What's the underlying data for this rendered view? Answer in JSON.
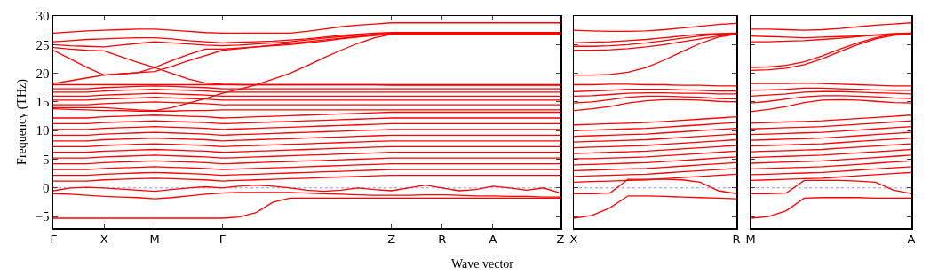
{
  "chart_data": [
    {
      "type": "line",
      "ylabel": "Frequency (THz)",
      "xlabel": "Wave vector",
      "line_style": "solid",
      "grid": false,
      "categories": [
        "Γ",
        null,
        null,
        "X",
        null,
        null,
        "M",
        null,
        null,
        null,
        "Γ",
        null,
        null,
        null,
        null,
        null,
        null,
        null,
        null,
        null,
        "Z",
        null,
        null,
        "R",
        null,
        null,
        "A",
        null,
        null,
        null,
        "Z"
      ],
      "ylim": [
        -7,
        30
      ],
      "yticks": [
        {
          "value": -5,
          "label": "−5"
        },
        0,
        5,
        10,
        15,
        20,
        25,
        30
      ],
      "ref_lines": [
        {
          "axis": "y",
          "value": 0,
          "color": "#7777ee",
          "line_style": "dotted"
        }
      ],
      "series": [
        {
          "color": "#ff0000",
          "values": [
            -5.3,
            -5.3,
            -5.3,
            -5.3,
            -5.3,
            -5.3,
            -5.3,
            -5.3,
            -5.3,
            -5.3,
            -5.3,
            -5.1,
            -4.3,
            -2.5,
            -1.8,
            -1.8,
            -1.8,
            -1.8,
            -1.8,
            -1.8,
            -1.8,
            -1.8,
            -1.8,
            -1.8,
            -1.8,
            -1.8,
            -1.8,
            -1.8,
            -1.8,
            -1.8,
            -1.8
          ]
        },
        {
          "color": "#ff0000",
          "values": [
            -1,
            -1.1,
            -1.3,
            -1.5,
            -1.6,
            -1.7,
            -1.9,
            -1.7,
            -1.4,
            -1.1,
            -0.9,
            -0.8,
            -0.8,
            -0.8,
            -0.8,
            -0.9,
            -1,
            -1.1,
            -1.2,
            -1.3,
            -1.3,
            -1.3,
            -1.2,
            -1.2,
            -1.3,
            -1.4,
            -1.4,
            -1.5,
            -1.5,
            -1.6,
            -1.6
          ]
        },
        {
          "color": "#ff0000",
          "values": [
            -0.5,
            0,
            0.1,
            0,
            -0.2,
            -0.4,
            -0.6,
            -0.3,
            0,
            0.2,
            0,
            0.3,
            0.5,
            0.3,
            0,
            -0.4,
            -0.6,
            -0.4,
            0,
            -0.3,
            -0.5,
            0,
            0.5,
            0,
            -0.5,
            -0.3,
            0.3,
            0,
            -0.4,
            0,
            -0.9
          ]
        },
        {
          "color": "#ff0000",
          "values": [
            1.2,
            1.2,
            1.2,
            1.4,
            1.5,
            1.6,
            1.7,
            1.6,
            1.5,
            1.4,
            1.2,
            1.3,
            1.4,
            1.5,
            1.6,
            1.7,
            1.8,
            1.9,
            2,
            2.1,
            2.2,
            2.2,
            2.2,
            2.2,
            2.2,
            2.2,
            2.2,
            2.2,
            2.2,
            2.2,
            2.2
          ]
        },
        {
          "color": "#ff0000",
          "values": [
            2.2,
            2.2,
            2.2,
            2.4,
            2.5,
            2.6,
            2.7,
            2.6,
            2.5,
            2.4,
            2.2,
            2.3,
            2.4,
            2.5,
            2.6,
            2.7,
            2.8,
            2.9,
            3,
            3.1,
            3.2,
            3.2,
            3.2,
            3.2,
            3.2,
            3.2,
            3.2,
            3.2,
            3.2,
            3.2,
            3.2
          ]
        },
        {
          "color": "#ff0000",
          "values": [
            3.2,
            3.2,
            3.2,
            3.4,
            3.5,
            3.6,
            3.7,
            3.6,
            3.5,
            3.4,
            3.2,
            3.3,
            3.4,
            3.5,
            3.6,
            3.7,
            3.8,
            3.9,
            4,
            4.1,
            4.2,
            4.2,
            4.2,
            4.2,
            4.2,
            4.2,
            4.2,
            4.2,
            4.2,
            4.2,
            4.2
          ]
        },
        {
          "color": "#ff0000",
          "values": [
            4.2,
            4.2,
            4.2,
            4.4,
            4.5,
            4.6,
            4.7,
            4.6,
            4.5,
            4.4,
            4.2,
            4.3,
            4.4,
            4.5,
            4.6,
            4.7,
            4.8,
            4.9,
            5,
            5.1,
            5.2,
            5.2,
            5.2,
            5.2,
            5.2,
            5.2,
            5.2,
            5.2,
            5.2,
            5.2,
            5.2
          ]
        },
        {
          "color": "#ff0000",
          "values": [
            5.2,
            5.2,
            5.2,
            5.4,
            5.5,
            5.6,
            5.7,
            5.6,
            5.5,
            5.4,
            5.2,
            5.3,
            5.4,
            5.5,
            5.6,
            5.7,
            5.8,
            5.9,
            6,
            6.1,
            6.2,
            6.2,
            6.2,
            6.2,
            6.2,
            6.2,
            6.2,
            6.2,
            6.2,
            6.2,
            6.2
          ]
        },
        {
          "color": "#ff0000",
          "values": [
            6.2,
            6.2,
            6.2,
            6.4,
            6.5,
            6.6,
            6.7,
            6.6,
            6.5,
            6.4,
            6.2,
            6.3,
            6.4,
            6.5,
            6.6,
            6.7,
            6.8,
            6.9,
            7,
            7.1,
            7.2,
            7.2,
            7.2,
            7.2,
            7.2,
            7.2,
            7.2,
            7.2,
            7.2,
            7.2,
            7.2
          ]
        },
        {
          "color": "#ff0000",
          "values": [
            7.2,
            7.2,
            7.2,
            7.4,
            7.5,
            7.6,
            7.7,
            7.6,
            7.5,
            7.4,
            7.2,
            7.3,
            7.4,
            7.5,
            7.6,
            7.7,
            7.8,
            7.9,
            8,
            8.1,
            8.2,
            8.2,
            8.2,
            8.2,
            8.2,
            8.2,
            8.2,
            8.2,
            8.2,
            8.2,
            8.2
          ]
        },
        {
          "color": "#ff0000",
          "values": [
            8.2,
            8.2,
            8.2,
            8.4,
            8.5,
            8.6,
            8.7,
            8.6,
            8.5,
            8.4,
            8.2,
            8.3,
            8.4,
            8.5,
            8.6,
            8.7,
            8.8,
            8.9,
            9,
            9.1,
            9.2,
            9.2,
            9.2,
            9.2,
            9.2,
            9.2,
            9.2,
            9.2,
            9.2,
            9.2,
            9.2
          ]
        },
        {
          "color": "#ff0000",
          "values": [
            9.2,
            9.2,
            9.2,
            9.4,
            9.5,
            9.6,
            9.7,
            9.6,
            9.5,
            9.4,
            9.2,
            9.3,
            9.4,
            9.5,
            9.6,
            9.7,
            9.8,
            9.9,
            10,
            10.1,
            10.2,
            10.2,
            10.2,
            10.2,
            10.2,
            10.2,
            10.2,
            10.2,
            10.2,
            10.2,
            10.2
          ]
        },
        {
          "color": "#ff0000",
          "values": [
            10.2,
            10.2,
            10.2,
            10.4,
            10.5,
            10.6,
            10.7,
            10.6,
            10.5,
            10.4,
            10.2,
            10.3,
            10.4,
            10.5,
            10.6,
            10.7,
            10.8,
            10.9,
            11,
            11.1,
            11.2,
            11.2,
            11.2,
            11.2,
            11.2,
            11.2,
            11.2,
            11.2,
            11.2,
            11.2,
            11.2
          ]
        },
        {
          "color": "#ff0000",
          "values": [
            11.2,
            11.2,
            11.2,
            11.4,
            11.5,
            11.6,
            11.7,
            11.6,
            11.5,
            11.4,
            11.2,
            11.3,
            11.4,
            11.5,
            11.6,
            11.7,
            11.8,
            11.9,
            12,
            12.1,
            12.2,
            12.2,
            12.2,
            12.2,
            12.2,
            12.2,
            12.2,
            12.2,
            12.2,
            12.2,
            12.2
          ]
        },
        {
          "color": "#ff0000",
          "values": [
            12.2,
            12.2,
            12.2,
            12.4,
            12.5,
            12.6,
            12.7,
            12.6,
            12.5,
            12.4,
            12.2,
            12.3,
            12.4,
            12.5,
            12.6,
            12.7,
            12.8,
            12.9,
            13,
            13.1,
            13.2,
            13.2,
            13.2,
            13.2,
            13.2,
            13.2,
            13.2,
            13.2,
            13.2,
            13.2,
            13.2
          ]
        },
        {
          "color": "#ff0000",
          "values": [
            13.8,
            13.7,
            13.6,
            13.5,
            13.5,
            13.4,
            13.4,
            13.4,
            13.5,
            13.5,
            13.6,
            13.6,
            13.6,
            13.6,
            13.6,
            13.6,
            13.6,
            13.6,
            13.6,
            13.6,
            13.6,
            13.6,
            13.6,
            13.6,
            13.6,
            13.6,
            13.6,
            13.6,
            13.6,
            13.6,
            13.6
          ]
        },
        {
          "color": "#ff0000",
          "values": [
            14.5,
            14.5,
            14.5,
            14.7,
            14.8,
            14.9,
            15,
            14.9,
            14.8,
            14.7,
            14.5,
            14.5,
            14.5,
            14.5,
            14.5,
            14.5,
            14.5,
            14.5,
            14.5,
            14.5,
            14.5,
            14.5,
            14.5,
            14.5,
            14.5,
            14.5,
            14.5,
            14.5,
            14.5,
            14.5,
            14.5
          ]
        },
        {
          "color": "#ff0000",
          "values": [
            15.3,
            15.3,
            15.3,
            15.5,
            15.6,
            15.7,
            15.8,
            15.7,
            15.6,
            15.5,
            15.3,
            15.3,
            15.3,
            15.3,
            15.3,
            15.3,
            15.3,
            15.3,
            15.3,
            15.3,
            15.3,
            15.3,
            15.3,
            15.3,
            15.3,
            15.3,
            15.3,
            15.3,
            15.3,
            15.3,
            15.3
          ]
        },
        {
          "color": "#ff0000",
          "values": [
            16,
            16,
            16,
            16.2,
            16.3,
            16.4,
            16.5,
            16.4,
            16.3,
            16.2,
            16,
            16,
            16,
            16,
            16,
            16,
            16,
            16,
            16,
            16,
            16,
            16,
            16,
            16,
            16,
            16,
            16,
            16,
            16,
            16,
            16
          ]
        },
        {
          "color": "#ff0000",
          "values": [
            16.7,
            16.7,
            16.7,
            16.9,
            17,
            17.1,
            17.2,
            17.1,
            17,
            16.9,
            16.7,
            16.7,
            16.7,
            16.7,
            16.7,
            16.7,
            16.7,
            16.7,
            16.7,
            16.7,
            16.7,
            16.7,
            16.7,
            16.7,
            16.7,
            16.7,
            16.7,
            16.7,
            16.7,
            16.7,
            16.7
          ]
        },
        {
          "color": "#ff0000",
          "values": [
            17.3,
            17.3,
            17.3,
            17.5,
            17.6,
            17.7,
            17.8,
            17.7,
            17.6,
            17.5,
            17.3,
            17.3,
            17.3,
            17.3,
            17.3,
            17.3,
            17.3,
            17.3,
            17.3,
            17.3,
            17.3,
            17.3,
            17.3,
            17.3,
            17.3,
            17.3,
            17.3,
            17.3,
            17.3,
            17.3,
            17.3
          ]
        },
        {
          "color": "#ff0000",
          "values": [
            18,
            18,
            18,
            18,
            18,
            18,
            18,
            18,
            18,
            18,
            18,
            18,
            18,
            18,
            18,
            18,
            18,
            18,
            18,
            18,
            17.9,
            17.9,
            17.9,
            17.9,
            17.9,
            17.9,
            17.9,
            17.9,
            17.9,
            17.9,
            17.9
          ]
        },
        {
          "color": "#ff0000",
          "values": [
            14,
            14,
            14,
            14,
            13.8,
            13.6,
            13.5,
            14,
            14.8,
            15.6,
            16.5,
            17.2,
            18,
            19,
            20,
            21.3,
            22.7,
            24,
            25.2,
            26.2,
            26.8,
            26.8,
            26.8,
            26.8,
            26.8,
            26.8,
            26.8,
            26.8,
            26.8,
            26.8,
            26.8
          ]
        },
        {
          "color": "#ff0000",
          "values": [
            18.2,
            18.7,
            19.2,
            19.7,
            19.9,
            20.1,
            20.3,
            21.2,
            22.2,
            23.1,
            24,
            24.3,
            24.6,
            24.9,
            25.2,
            25.5,
            25.8,
            26.1,
            26.4,
            26.6,
            26.8,
            26.8,
            26.8,
            26.8,
            26.8,
            26.8,
            26.8,
            26.8,
            26.8,
            26.8,
            26.8
          ]
        },
        {
          "color": "#ff0000",
          "values": [
            24,
            22.5,
            21,
            19.7,
            19.9,
            20.1,
            21,
            20,
            19,
            18.3,
            18.1,
            18,
            18,
            18,
            18,
            18,
            18,
            18,
            18,
            18,
            18,
            18,
            18,
            18,
            18,
            18,
            18,
            18,
            18,
            18,
            18
          ]
        },
        {
          "color": "#ff0000",
          "values": [
            24.5,
            24.2,
            24,
            23.9,
            22.9,
            21.9,
            21,
            22.2,
            23.3,
            24.2,
            24.2,
            24.4,
            24.6,
            24.8,
            25,
            25.3,
            25.6,
            26,
            26.3,
            26.6,
            26.9,
            26.9,
            26.9,
            26.9,
            26.9,
            26.9,
            26.9,
            26.9,
            26.9,
            26.9,
            26.9
          ]
        },
        {
          "color": "#ff0000",
          "values": [
            25,
            24.8,
            24.7,
            24.6,
            24.9,
            25.2,
            25.5,
            25.3,
            25.1,
            24.9,
            24.8,
            24.9,
            25.1,
            25.3,
            25.5,
            25.8,
            26.1,
            26.4,
            26.6,
            26.8,
            27,
            27,
            27,
            27,
            27,
            27,
            27,
            27,
            27,
            27,
            27
          ]
        },
        {
          "color": "#ff0000",
          "values": [
            25.5,
            25.7,
            25.9,
            26,
            26.1,
            26.2,
            26.2,
            26,
            25.7,
            25.5,
            25.3,
            25.4,
            25.5,
            25.6,
            25.8,
            26,
            26.3,
            26.6,
            26.8,
            27,
            27.1,
            27.1,
            27.1,
            27.1,
            27.1,
            27.1,
            27.1,
            27.1,
            27.1,
            27.1,
            27.1
          ]
        },
        {
          "color": "#ff0000",
          "values": [
            27,
            27.2,
            27.4,
            27.5,
            27.6,
            27.7,
            27.7,
            27.5,
            27.3,
            27.1,
            27,
            27,
            27,
            27,
            27,
            27.3,
            27.7,
            28.1,
            28.4,
            28.6,
            28.8,
            28.8,
            28.8,
            28.8,
            28.8,
            28.8,
            28.8,
            28.8,
            28.8,
            28.8,
            28.8
          ]
        }
      ]
    },
    {
      "type": "line",
      "line_style": "solid",
      "grid": false,
      "tick_labels": "x",
      "categories": [
        "X",
        null,
        null,
        null,
        null,
        null,
        null,
        null,
        null,
        "R"
      ],
      "ylim": [
        -7,
        30
      ],
      "yticks": [
        -5,
        0,
        5,
        10,
        15,
        20,
        25,
        30
      ],
      "ref_lines": [
        {
          "axis": "y",
          "value": 0,
          "color": "#7777ee",
          "line_style": "dotted"
        }
      ],
      "series": [
        {
          "color": "#ff0000",
          "values": [
            -5.3,
            -4.8,
            -3.5,
            -1.4,
            -1.4,
            -1.5,
            -1.6,
            -1.7,
            -1.8,
            -1.9
          ]
        },
        {
          "color": "#ff0000",
          "values": [
            -1,
            -1,
            -0.9,
            1.5,
            1.5,
            1.5,
            1.4,
            1,
            -0.5,
            -1
          ]
        },
        {
          "color": "#ff0000",
          "values": [
            1,
            1.1,
            1.2,
            1.3,
            1.4,
            1.6,
            1.8,
            2,
            2.2,
            2.4
          ]
        },
        {
          "color": "#ff0000",
          "values": [
            2,
            2.1,
            2.2,
            2.3,
            2.4,
            2.6,
            2.8,
            3,
            3.2,
            3.4
          ]
        },
        {
          "color": "#ff0000",
          "values": [
            3,
            3.1,
            3.2,
            3.3,
            3.4,
            3.6,
            3.8,
            4,
            4.2,
            4.4
          ]
        },
        {
          "color": "#ff0000",
          "values": [
            4,
            4.1,
            4.2,
            4.3,
            4.4,
            4.6,
            4.8,
            5,
            5.2,
            5.4
          ]
        },
        {
          "color": "#ff0000",
          "values": [
            5.1,
            5.1,
            5.2,
            5.3,
            5.4,
            5.6,
            5.8,
            6,
            6.2,
            6.4
          ]
        },
        {
          "color": "#ff0000",
          "values": [
            6,
            6.1,
            6.2,
            6.3,
            6.4,
            6.6,
            6.8,
            7,
            7.2,
            7.4
          ]
        },
        {
          "color": "#ff0000",
          "values": [
            7,
            7.1,
            7.2,
            7.3,
            7.4,
            7.6,
            7.8,
            8,
            8.2,
            8.4
          ]
        },
        {
          "color": "#ff0000",
          "values": [
            8,
            8.1,
            8.2,
            8.3,
            8.4,
            8.6,
            8.8,
            9,
            9.2,
            9.4
          ]
        },
        {
          "color": "#ff0000",
          "values": [
            9,
            9.1,
            9.2,
            9.3,
            9.4,
            9.6,
            9.8,
            10,
            10.2,
            10.4
          ]
        },
        {
          "color": "#ff0000",
          "values": [
            10,
            10.1,
            10.2,
            10.3,
            10.4,
            10.6,
            10.8,
            11,
            11.2,
            11.4
          ]
        },
        {
          "color": "#ff0000",
          "values": [
            11,
            11.1,
            11.2,
            11.3,
            11.4,
            11.6,
            11.8,
            12,
            12.2,
            12.4
          ]
        },
        {
          "color": "#ff0000",
          "values": [
            13.5,
            13.8,
            14.2,
            14.8,
            15.2,
            15.4,
            15.4,
            15.3,
            15.1,
            15
          ]
        },
        {
          "color": "#ff0000",
          "values": [
            14.8,
            15,
            15.4,
            15.8,
            16,
            16,
            15.9,
            15.8,
            15.6,
            15.5
          ]
        },
        {
          "color": "#ff0000",
          "values": [
            16,
            16.1,
            16.3,
            16.5,
            16.6,
            16.6,
            16.5,
            16.5,
            16.4,
            16.4
          ]
        },
        {
          "color": "#ff0000",
          "values": [
            16.8,
            16.9,
            17,
            17.2,
            17.2,
            17.2,
            17.1,
            17,
            16.9,
            16.9
          ]
        },
        {
          "color": "#ff0000",
          "values": [
            18,
            18,
            18.1,
            18.1,
            18,
            18,
            17.9,
            17.9,
            17.8,
            17.8
          ]
        },
        {
          "color": "#ff0000",
          "values": [
            19.7,
            19.7,
            19.8,
            20.2,
            21,
            22.3,
            23.8,
            25.2,
            26.3,
            26.8
          ]
        },
        {
          "color": "#ff0000",
          "values": [
            24,
            24,
            24.1,
            24.3,
            24.6,
            25,
            25.5,
            26,
            26.5,
            26.8
          ]
        },
        {
          "color": "#ff0000",
          "values": [
            24.7,
            24.7,
            24.8,
            25,
            25.3,
            25.7,
            26.1,
            26.5,
            26.8,
            26.9
          ]
        },
        {
          "color": "#ff0000",
          "values": [
            25.3,
            25.4,
            25.5,
            25.7,
            25.9,
            26.2,
            26.5,
            26.8,
            26.9,
            27
          ]
        },
        {
          "color": "#ff0000",
          "values": [
            27.5,
            27.4,
            27.3,
            27.3,
            27.4,
            27.6,
            27.9,
            28.2,
            28.5,
            28.7
          ]
        }
      ]
    },
    {
      "type": "line",
      "line_style": "solid",
      "grid": false,
      "tick_labels": "x",
      "categories": [
        "M",
        null,
        null,
        null,
        null,
        null,
        null,
        null,
        null,
        "A"
      ],
      "ylim": [
        -7,
        30
      ],
      "yticks": [
        -5,
        0,
        5,
        10,
        15,
        20,
        25,
        30
      ],
      "ref_lines": [
        {
          "axis": "y",
          "value": 0,
          "color": "#7777ee",
          "line_style": "dotted"
        }
      ],
      "series": [
        {
          "color": "#ff0000",
          "values": [
            -5.3,
            -5,
            -4,
            -1.8,
            -1.7,
            -1.7,
            -1.7,
            -1.8,
            -1.8,
            -1.8
          ]
        },
        {
          "color": "#ff0000",
          "values": [
            -1,
            -1,
            -0.9,
            1.3,
            1.3,
            1.3,
            1.2,
            1,
            -0.4,
            -1
          ]
        },
        {
          "color": "#ff0000",
          "values": [
            1.3,
            1.4,
            1.5,
            1.6,
            1.7,
            1.9,
            2.1,
            2.3,
            2.5,
            2.7
          ]
        },
        {
          "color": "#ff0000",
          "values": [
            2.3,
            2.4,
            2.5,
            2.6,
            2.7,
            2.9,
            3.1,
            3.3,
            3.5,
            3.7
          ]
        },
        {
          "color": "#ff0000",
          "values": [
            3.3,
            3.4,
            3.5,
            3.6,
            3.7,
            3.9,
            4.1,
            4.3,
            4.5,
            4.7
          ]
        },
        {
          "color": "#ff0000",
          "values": [
            4.3,
            4.4,
            4.5,
            4.6,
            4.7,
            4.9,
            5.1,
            5.3,
            5.5,
            5.7
          ]
        },
        {
          "color": "#ff0000",
          "values": [
            5.3,
            5.4,
            5.5,
            5.6,
            5.7,
            5.9,
            6.1,
            6.3,
            6.5,
            6.7
          ]
        },
        {
          "color": "#ff0000",
          "values": [
            6.3,
            6.4,
            6.5,
            6.6,
            6.7,
            6.9,
            7.1,
            7.3,
            7.5,
            7.7
          ]
        },
        {
          "color": "#ff0000",
          "values": [
            7.3,
            7.4,
            7.5,
            7.6,
            7.7,
            7.9,
            8.1,
            8.3,
            8.5,
            8.7
          ]
        },
        {
          "color": "#ff0000",
          "values": [
            8.3,
            8.4,
            8.5,
            8.6,
            8.7,
            8.9,
            9.1,
            9.3,
            9.5,
            9.7
          ]
        },
        {
          "color": "#ff0000",
          "values": [
            9.3,
            9.4,
            9.5,
            9.6,
            9.7,
            9.9,
            10.1,
            10.3,
            10.5,
            10.7
          ]
        },
        {
          "color": "#ff0000",
          "values": [
            10.3,
            10.4,
            10.5,
            10.6,
            10.7,
            10.9,
            11.1,
            11.3,
            11.5,
            11.7
          ]
        },
        {
          "color": "#ff0000",
          "values": [
            11.3,
            11.4,
            11.5,
            11.6,
            11.7,
            11.9,
            12.1,
            12.3,
            12.5,
            12.7
          ]
        },
        {
          "color": "#ff0000",
          "values": [
            13.3,
            13.7,
            14.2,
            14.9,
            15.3,
            15.4,
            15.3,
            15.1,
            14.9,
            14.8
          ]
        },
        {
          "color": "#ff0000",
          "values": [
            14.8,
            15.1,
            15.5,
            15.9,
            16.1,
            16.1,
            16,
            15.9,
            15.7,
            15.6
          ]
        },
        {
          "color": "#ff0000",
          "values": [
            16,
            16.2,
            16.4,
            16.7,
            16.8,
            16.8,
            16.7,
            16.6,
            16.5,
            16.4
          ]
        },
        {
          "color": "#ff0000",
          "values": [
            17,
            17.1,
            17.2,
            17.4,
            17.4,
            17.3,
            17.2,
            17.1,
            17,
            17
          ]
        },
        {
          "color": "#ff0000",
          "values": [
            18.2,
            18.2,
            18.2,
            18.3,
            18.2,
            18.1,
            18,
            17.9,
            17.8,
            17.8
          ]
        },
        {
          "color": "#ff0000",
          "values": [
            20.5,
            20.6,
            20.9,
            21.5,
            22.5,
            23.8,
            25,
            26,
            26.6,
            26.8
          ]
        },
        {
          "color": "#ff0000",
          "values": [
            21,
            21.1,
            21.4,
            22,
            23,
            24.2,
            25.3,
            26.2,
            26.8,
            27
          ]
        },
        {
          "color": "#ff0000",
          "values": [
            25.5,
            25.5,
            25.6,
            25.7,
            25.9,
            26.1,
            26.4,
            26.7,
            26.9,
            27
          ]
        },
        {
          "color": "#ff0000",
          "values": [
            26.5,
            26.4,
            26.3,
            26.2,
            26.3,
            26.4,
            26.5,
            26.6,
            26.7,
            26.8
          ]
        },
        {
          "color": "#ff0000",
          "values": [
            27.7,
            27.7,
            27.6,
            27.5,
            27.6,
            27.8,
            28.1,
            28.4,
            28.6,
            28.8
          ]
        }
      ]
    }
  ]
}
